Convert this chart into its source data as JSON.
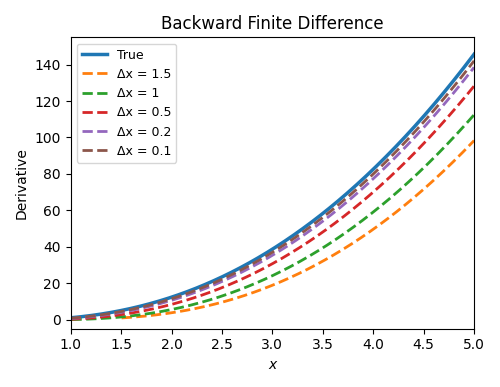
{
  "title": "Backward Finite Difference",
  "xlabel": "x",
  "ylabel": "Derivative",
  "x_start": 1.0,
  "x_end": 5.0,
  "n_points": 500,
  "dx_values": [
    1.5,
    1.0,
    0.5,
    0.2,
    0.1
  ],
  "dx_colors": [
    "#ff7f0e",
    "#2ca02c",
    "#d62728",
    "#9467bd",
    "#8c564b"
  ],
  "true_color": "#1f77b4",
  "true_linewidth": 2.5,
  "dashed_linewidth": 2.0,
  "legend_labels": [
    "True",
    "Δx = 1.5",
    "Δx = 1",
    "Δx = 0.5",
    "Δx = 0.2",
    "Δx = 0.1"
  ],
  "ylim_bottom": -5,
  "ylim_top": 155,
  "xlim_left": 1.0,
  "xlim_right": 5.0
}
